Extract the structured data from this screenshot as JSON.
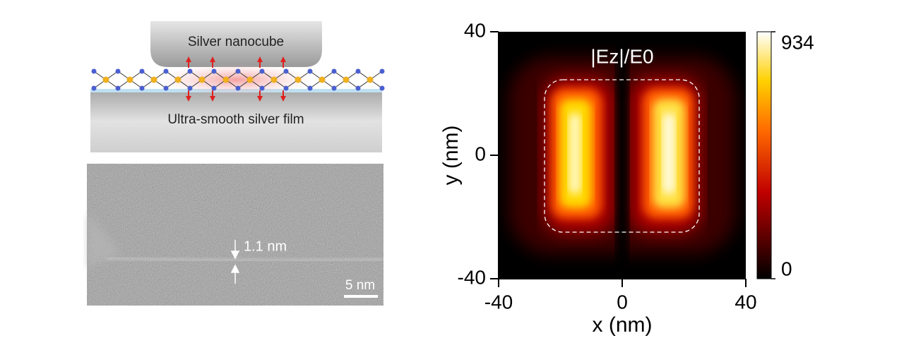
{
  "schematic": {
    "top_label": "Silver nanocube",
    "bottom_label": "Ultra-smooth silver film"
  },
  "micrograph": {
    "gap_label": "1.1 nm",
    "scale_bar_label": "5 nm"
  },
  "chart_data": {
    "type": "heatmap",
    "title": "|Ez|/E0",
    "x_label": "x (nm)",
    "y_label": "y (nm)",
    "xlim": [
      -40,
      40
    ],
    "ylim": [
      -40,
      40
    ],
    "xticks": [
      -40,
      0,
      40
    ],
    "yticks": [
      -40,
      0,
      40
    ],
    "colorbar": {
      "clim": [
        0,
        934
      ],
      "ticks": [
        0,
        934
      ]
    }
  }
}
